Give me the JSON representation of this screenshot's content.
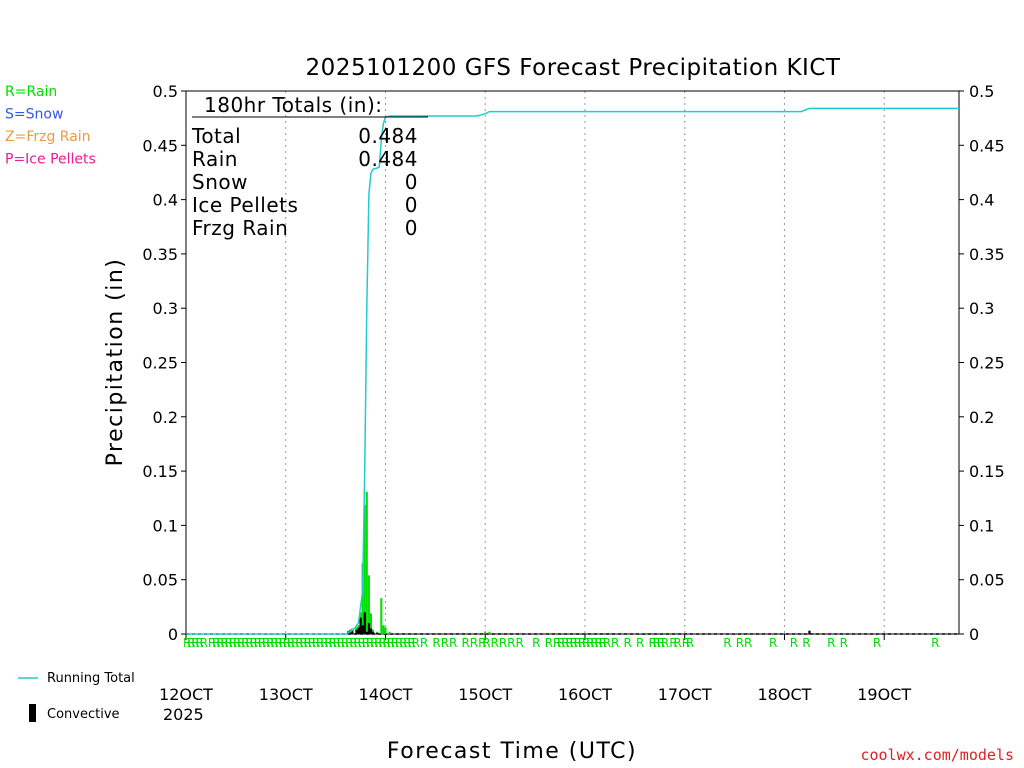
{
  "chart_data": {
    "type": "bar",
    "title": "2025101200 GFS Forecast Precipitation KICT",
    "xlabel": "Forecast Time (UTC)",
    "ylabel": "Precipitation (in)",
    "ylim": [
      0,
      0.5
    ],
    "yticks": [
      0,
      0.05,
      0.1,
      0.15,
      0.2,
      0.25,
      0.3,
      0.35,
      0.4,
      0.45,
      0.5
    ],
    "ytick_labels": [
      "0",
      "0.05",
      "0.1",
      "0.15",
      "0.2",
      "0.25",
      "0.3",
      "0.35",
      "0.4",
      "0.45",
      "0.5"
    ],
    "xlim_hours": [
      0,
      186
    ],
    "xticks": [
      {
        "hour": 0,
        "label": "12OCT"
      },
      {
        "hour": 24,
        "label": "13OCT"
      },
      {
        "hour": 48,
        "label": "14OCT"
      },
      {
        "hour": 72,
        "label": "15OCT"
      },
      {
        "hour": 96,
        "label": "16OCT"
      },
      {
        "hour": 120,
        "label": "17OCT"
      },
      {
        "hour": 144,
        "label": "18OCT"
      },
      {
        "hour": 168,
        "label": "19OCT"
      }
    ],
    "year_label": "2025",
    "grid": true,
    "totals": {
      "header": "180hr Totals (in):",
      "rows": [
        {
          "label": "Total",
          "value": "0.484"
        },
        {
          "label": "Rain",
          "value": "0.484"
        },
        {
          "label": "Snow",
          "value": "0"
        },
        {
          "label": "Ice Pellets",
          "value": "0"
        },
        {
          "label": "Frzg Rain",
          "value": "0"
        }
      ]
    },
    "type_legend": [
      {
        "label": "R=Rain",
        "color": "#00dd00"
      },
      {
        "label": "S=Snow",
        "color": "#3355ee"
      },
      {
        "label": "Z=Frzg Rain",
        "color": "#ee9944"
      },
      {
        "label": "P=Ice Pellets",
        "color": "#ee1a9a"
      }
    ],
    "series_legend": {
      "running_total": {
        "label": "Running Total",
        "color": "#22cccc"
      },
      "convective": {
        "label": "Convective",
        "color": "#000000"
      }
    },
    "bars": [
      {
        "hour": 39.0,
        "value": 0.003,
        "convective": 0.002
      },
      {
        "hour": 39.5,
        "value": 0.004,
        "convective": 0.003
      },
      {
        "hour": 40.0,
        "value": 0.005,
        "convective": 0.004
      },
      {
        "hour": 41.0,
        "value": 0.006,
        "convective": 0.004
      },
      {
        "hour": 41.5,
        "value": 0.008,
        "convective": 0.006
      },
      {
        "hour": 42.0,
        "value": 0.02,
        "convective": 0.015
      },
      {
        "hour": 42.5,
        "value": 0.065,
        "convective": 0.008
      },
      {
        "hour": 43.0,
        "value": 0.119,
        "convective": 0.02
      },
      {
        "hour": 43.5,
        "value": 0.131,
        "convective": 0.002
      },
      {
        "hour": 44.0,
        "value": 0.054,
        "convective": 0.01
      },
      {
        "hour": 44.5,
        "value": 0.019,
        "convective": 0.005
      },
      {
        "hour": 45.0,
        "value": 0.004,
        "convective": 0.002
      },
      {
        "hour": 46.0,
        "value": 0.002,
        "convective": 0.001
      },
      {
        "hour": 47.0,
        "value": 0.033,
        "convective": 0.0
      },
      {
        "hour": 47.5,
        "value": 0.008,
        "convective": 0.0
      },
      {
        "hour": 48.0,
        "value": 0.006,
        "convective": 0.0
      },
      {
        "hour": 49.0,
        "value": 0.002,
        "convective": 0.0
      },
      {
        "hour": 72.0,
        "value": 0.002,
        "convective": 0.0
      },
      {
        "hour": 73.0,
        "value": 0.002,
        "convective": 0.0
      },
      {
        "hour": 86.0,
        "value": 0.001,
        "convective": 0.0
      },
      {
        "hour": 150.0,
        "value": 0.003,
        "convective": 0.003
      }
    ],
    "running_total": {
      "hours": [
        0,
        38.5,
        39.5,
        40.5,
        41.5,
        42.5,
        43,
        43.5,
        44,
        44.5,
        45,
        46,
        46.5,
        47,
        47.5,
        48,
        49,
        53,
        60,
        70,
        72,
        73,
        80,
        100,
        140,
        148,
        150,
        151,
        160,
        170,
        180,
        186
      ],
      "values": [
        0,
        0,
        0.002,
        0.005,
        0.01,
        0.04,
        0.15,
        0.3,
        0.405,
        0.424,
        0.428,
        0.429,
        0.43,
        0.455,
        0.47,
        0.476,
        0.477,
        0.477,
        0.477,
        0.477,
        0.479,
        0.481,
        0.481,
        0.481,
        0.481,
        0.481,
        0.484,
        0.484,
        0.484,
        0.484,
        0.484,
        0.484
      ]
    },
    "type_markers": {
      "letter": "R",
      "hours": [
        0,
        1,
        2,
        3,
        4,
        6,
        7,
        8,
        9,
        10,
        11,
        12,
        13,
        14,
        15,
        16,
        17,
        18,
        19,
        20,
        21,
        22,
        23,
        24,
        25,
        26,
        27,
        28,
        29,
        30,
        31,
        32,
        33,
        34,
        35,
        36,
        37,
        38,
        39,
        40,
        41,
        42,
        43,
        44,
        45,
        46,
        47,
        48,
        49,
        50,
        51,
        52,
        53,
        54,
        55,
        57,
        60,
        62,
        64,
        67,
        69,
        71,
        72,
        74,
        76,
        78,
        80,
        84,
        87,
        89,
        90,
        91,
        92,
        93,
        94,
        95,
        96,
        97,
        98,
        99,
        100,
        101,
        103,
        106,
        109,
        112,
        113,
        114,
        115,
        117,
        118,
        120,
        121,
        130,
        133,
        135,
        141,
        146,
        149,
        155,
        158,
        166,
        180
      ]
    },
    "site_label": "coolwx.com/models"
  }
}
